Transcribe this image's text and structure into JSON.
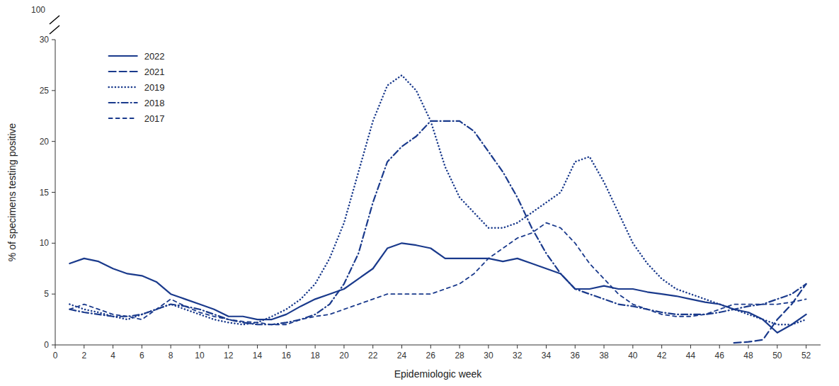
{
  "chart_data": {
    "type": "line",
    "xlabel": "Epidemiologic week",
    "ylabel": "% of specimens testing positive",
    "annotations": [
      "100"
    ],
    "x": [
      1,
      2,
      3,
      4,
      5,
      6,
      7,
      8,
      9,
      10,
      11,
      12,
      13,
      14,
      15,
      16,
      17,
      18,
      19,
      20,
      21,
      22,
      23,
      24,
      25,
      26,
      27,
      28,
      29,
      30,
      31,
      32,
      33,
      34,
      35,
      36,
      37,
      38,
      39,
      40,
      41,
      42,
      43,
      44,
      45,
      46,
      47,
      48,
      49,
      50,
      51,
      52
    ],
    "series": [
      {
        "name": "2022",
        "color": "#1a3a8c",
        "line_style": "solid",
        "values": [
          8.0,
          8.5,
          8.2,
          7.5,
          7.0,
          6.8,
          6.2,
          5.0,
          4.5,
          4.0,
          3.5,
          2.8,
          2.8,
          2.5,
          2.5,
          3.0,
          3.8,
          4.5,
          5.0,
          5.5,
          6.5,
          7.5,
          9.5,
          10.0,
          9.8,
          9.5,
          8.5,
          8.5,
          8.5,
          8.5,
          8.2,
          8.5,
          8.0,
          7.5,
          7.0,
          5.5,
          5.5,
          5.8,
          5.5,
          5.5,
          5.2,
          5.0,
          4.8,
          4.5,
          4.2,
          4.0,
          3.5,
          3.2,
          2.5,
          1.2,
          2.0,
          3.0
        ]
      },
      {
        "name": "2021",
        "color": "#1a3a8c",
        "line_style": "longdash",
        "values": [
          null,
          null,
          null,
          null,
          null,
          null,
          null,
          null,
          null,
          null,
          null,
          null,
          null,
          null,
          null,
          null,
          null,
          null,
          null,
          null,
          null,
          null,
          null,
          null,
          null,
          null,
          null,
          null,
          null,
          null,
          null,
          null,
          null,
          null,
          null,
          null,
          null,
          null,
          null,
          null,
          null,
          null,
          null,
          null,
          null,
          null,
          0.2,
          0.3,
          0.5,
          2.5,
          4.0,
          6.0
        ]
      },
      {
        "name": "2019",
        "color": "#1a3a8c",
        "line_style": "dotted",
        "values": [
          4.0,
          3.5,
          3.2,
          2.8,
          2.5,
          3.0,
          3.5,
          4.0,
          3.5,
          3.0,
          2.5,
          2.2,
          2.0,
          2.2,
          2.8,
          3.5,
          4.5,
          6.0,
          8.5,
          12.0,
          17.0,
          22.0,
          25.5,
          26.5,
          25.0,
          22.0,
          17.5,
          14.5,
          13.0,
          11.5,
          11.5,
          12.0,
          13.0,
          14.0,
          15.0,
          18.0,
          18.5,
          16.0,
          13.0,
          10.0,
          8.0,
          6.5,
          5.5,
          5.0,
          4.5,
          4.0,
          3.5,
          3.0,
          2.5,
          2.0,
          2.0,
          2.5
        ]
      },
      {
        "name": "2018",
        "color": "#1a3a8c",
        "line_style": "dashdot",
        "values": [
          3.5,
          3.2,
          3.0,
          2.8,
          2.8,
          3.0,
          3.5,
          4.0,
          3.8,
          3.5,
          3.0,
          2.5,
          2.2,
          2.0,
          2.0,
          2.2,
          2.5,
          3.0,
          4.0,
          6.0,
          9.0,
          14.0,
          18.0,
          19.5,
          20.5,
          22.0,
          22.0,
          22.0,
          21.0,
          19.0,
          17.0,
          14.5,
          11.5,
          9.0,
          7.0,
          5.5,
          5.0,
          4.5,
          4.0,
          3.8,
          3.5,
          3.2,
          3.0,
          3.0,
          3.0,
          3.2,
          3.5,
          3.8,
          4.0,
          4.5,
          5.0,
          6.0
        ]
      },
      {
        "name": "2017",
        "color": "#1a3a8c",
        "line_style": "dashed",
        "values": [
          3.5,
          4.0,
          3.5,
          3.0,
          2.8,
          2.5,
          3.5,
          4.5,
          3.8,
          3.2,
          2.8,
          2.5,
          2.3,
          2.2,
          2.0,
          2.0,
          2.5,
          2.8,
          3.0,
          3.5,
          4.0,
          4.5,
          5.0,
          5.0,
          5.0,
          5.0,
          5.5,
          6.0,
          7.0,
          8.5,
          9.5,
          10.5,
          11.0,
          12.0,
          11.5,
          10.0,
          8.0,
          6.5,
          5.0,
          4.0,
          3.5,
          3.0,
          2.8,
          2.8,
          3.0,
          3.5,
          4.0,
          4.0,
          4.0,
          4.0,
          4.2,
          4.5
        ]
      }
    ],
    "xlim": [
      0,
      53
    ],
    "ylim": [
      0,
      30
    ],
    "xticks": [
      0,
      2,
      4,
      6,
      8,
      10,
      12,
      14,
      16,
      18,
      20,
      22,
      24,
      26,
      28,
      30,
      32,
      34,
      36,
      38,
      40,
      42,
      44,
      46,
      48,
      50,
      52
    ],
    "yticks": [
      0,
      5,
      10,
      15,
      20,
      25,
      30
    ],
    "grid": false,
    "legend": "upper left"
  }
}
